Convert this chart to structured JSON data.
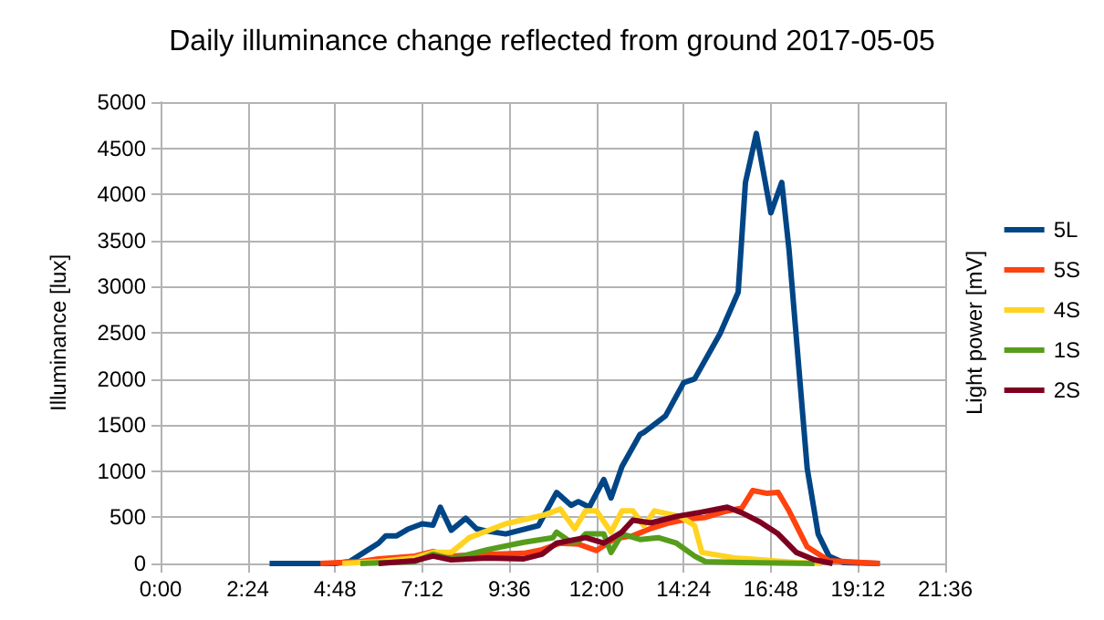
{
  "chart_data": {
    "type": "line",
    "title": "Daily illuminance change reflected from ground 2017-05-05",
    "ylabel": "Illuminance [lux]",
    "y2label": "Light power [mV]",
    "xlim": [
      0,
      21.6
    ],
    "xticks": [
      {
        "value": 0,
        "label": "0:00"
      },
      {
        "value": 2.4,
        "label": "2:24"
      },
      {
        "value": 4.8,
        "label": "4:48"
      },
      {
        "value": 7.2,
        "label": "7:12"
      },
      {
        "value": 9.6,
        "label": "9:36"
      },
      {
        "value": 12,
        "label": "12:00"
      },
      {
        "value": 14.4,
        "label": "14:24"
      },
      {
        "value": 16.8,
        "label": "16:48"
      },
      {
        "value": 19.2,
        "label": "19:12"
      },
      {
        "value": 21.6,
        "label": "21:36"
      }
    ],
    "ylim": [
      0,
      5000
    ],
    "yticks": [
      0,
      500,
      1000,
      1500,
      2000,
      2500,
      3000,
      3500,
      4000,
      4500,
      5000
    ],
    "grid": true,
    "legend": "right",
    "marker": "none",
    "line_style": "solid",
    "series": [
      {
        "name": "5L",
        "color": "#004586",
        "x": [
          3,
          4.8,
          5.2,
          5.6,
          6.0,
          6.2,
          6.5,
          6.8,
          7.2,
          7.5,
          7.7,
          8.0,
          8.4,
          8.7,
          9.0,
          9.5,
          10.4,
          10.9,
          11.3,
          11.5,
          11.8,
          12.2,
          12.4,
          12.7,
          13.2,
          13.3,
          13.9,
          14.4,
          14.7,
          15.4,
          15.9,
          16.1,
          16.4,
          16.8,
          17.1,
          17.3,
          17.8,
          18.1,
          18.4,
          18.8,
          19.8
        ],
        "values": [
          0,
          0,
          20,
          120,
          220,
          300,
          300,
          370,
          430,
          415,
          610,
          360,
          490,
          375,
          350,
          320,
          410,
          770,
          630,
          670,
          610,
          910,
          710,
          1050,
          1400,
          1420,
          1600,
          1960,
          2000,
          2490,
          2940,
          4130,
          4660,
          3800,
          4130,
          3400,
          1030,
          320,
          80,
          10,
          0
        ]
      },
      {
        "name": "5S",
        "color": "#ff420e",
        "x": [
          4.4,
          5.5,
          6.0,
          7.0,
          7.5,
          8.0,
          9.0,
          10.0,
          10.5,
          11.0,
          11.5,
          12.0,
          12.5,
          13.0,
          13.5,
          14.0,
          14.5,
          15.0,
          15.5,
          16.0,
          16.3,
          16.7,
          17.0,
          17.3,
          17.8,
          18.4,
          19.8
        ],
        "values": [
          0,
          20,
          50,
          80,
          130,
          80,
          100,
          110,
          150,
          220,
          210,
          140,
          270,
          300,
          380,
          440,
          480,
          500,
          560,
          600,
          790,
          760,
          770,
          570,
          180,
          30,
          0
        ]
      },
      {
        "name": "4S",
        "color": "#ffd320",
        "x": [
          5.0,
          6.0,
          7.0,
          7.5,
          8.0,
          8.5,
          9.5,
          10.6,
          11.0,
          11.4,
          11.7,
          12.0,
          12.4,
          12.7,
          13.0,
          13.3,
          13.6,
          14.3,
          14.7,
          14.9,
          15.8,
          16.2,
          17.5,
          18.2
        ],
        "values": [
          0,
          20,
          60,
          120,
          120,
          280,
          430,
          530,
          590,
          375,
          570,
          570,
          340,
          570,
          570,
          410,
          570,
          510,
          410,
          120,
          60,
          50,
          10,
          0
        ]
      },
      {
        "name": "1S",
        "color": "#579d1c",
        "x": [
          5.5,
          7.0,
          7.5,
          8.0,
          9.0,
          10.0,
          10.8,
          10.9,
          11.3,
          11.5,
          11.7,
          12.2,
          12.4,
          12.7,
          13.2,
          13.7,
          14.2,
          14.7,
          15.0,
          16.0,
          18.0
        ],
        "values": [
          0,
          20,
          100,
          50,
          150,
          230,
          280,
          340,
          230,
          240,
          320,
          320,
          120,
          320,
          260,
          280,
          220,
          80,
          20,
          10,
          0
        ]
      },
      {
        "name": "2S",
        "color": "#7e0021",
        "x": [
          6.0,
          7.0,
          7.5,
          8.0,
          9.0,
          10.0,
          10.5,
          10.9,
          11.7,
          12.2,
          12.7,
          13.0,
          13.5,
          14.2,
          14.8,
          15.6,
          16.0,
          16.5,
          17.0,
          17.5,
          18.0,
          18.5
        ],
        "values": [
          0,
          30,
          80,
          40,
          60,
          50,
          100,
          220,
          280,
          220,
          340,
          470,
          440,
          510,
          550,
          610,
          550,
          450,
          320,
          120,
          40,
          0
        ]
      }
    ]
  }
}
